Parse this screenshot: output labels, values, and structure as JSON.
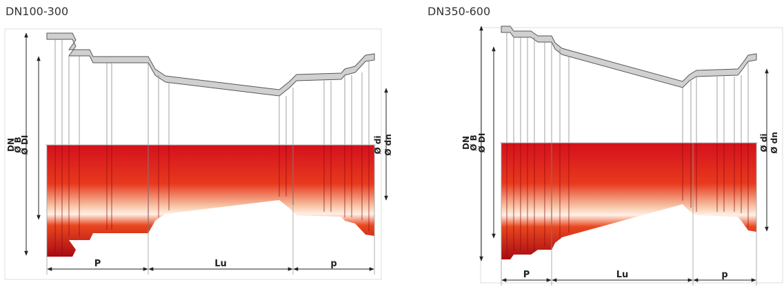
{
  "panels": [
    {
      "title": "DN100-300",
      "left_labels": [
        "DN",
        "Ø B",
        "Ø DI"
      ],
      "right_labels": [
        "Ø di",
        "Ø dn"
      ],
      "dimensions": [
        "P",
        "Lu",
        "p"
      ]
    },
    {
      "title": "DN350-600",
      "left_labels": [
        "DN",
        "Ø B",
        "Ø DI"
      ],
      "right_labels": [
        "Ø di",
        "Ø dn"
      ],
      "dimensions": [
        "P",
        "Lu",
        "p"
      ]
    }
  ]
}
